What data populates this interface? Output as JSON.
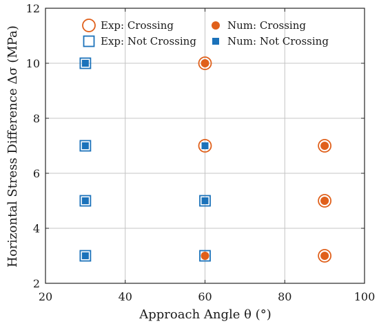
{
  "chart_data": {
    "type": "scatter",
    "title": "",
    "xlabel": "Approach Angle θ (°)",
    "ylabel": "Horizontal Stress Difference Δσ (MPa)",
    "xlim": [
      20,
      100
    ],
    "ylim": [
      2,
      12
    ],
    "x_ticks": [
      20,
      40,
      60,
      80,
      100
    ],
    "y_ticks": [
      2,
      4,
      6,
      8,
      10,
      12
    ],
    "grid": true,
    "legend_position": "top",
    "series": [
      {
        "name": "Exp: Crossing",
        "marker": "open-circle",
        "color": "#E0601B",
        "points": [
          [
            60,
            10
          ],
          [
            60,
            7
          ],
          [
            90,
            7
          ],
          [
            90,
            5
          ],
          [
            90,
            3
          ]
        ]
      },
      {
        "name": "Exp: Not Crossing",
        "marker": "open-square",
        "color": "#1B72BA",
        "points": [
          [
            30,
            10
          ],
          [
            30,
            7
          ],
          [
            30,
            5
          ],
          [
            30,
            3
          ],
          [
            60,
            5
          ],
          [
            60,
            3
          ]
        ]
      },
      {
        "name": "Num: Crossing",
        "marker": "filled-circle",
        "color": "#E0601B",
        "points": [
          [
            60,
            10
          ],
          [
            60,
            3
          ],
          [
            90,
            7
          ],
          [
            90,
            5
          ],
          [
            90,
            3
          ]
        ]
      },
      {
        "name": "Num: Not Crossing",
        "marker": "filled-square",
        "color": "#1B72BA",
        "points": [
          [
            30,
            10
          ],
          [
            30,
            7
          ],
          [
            30,
            5
          ],
          [
            30,
            3
          ],
          [
            60,
            7
          ],
          [
            60,
            5
          ]
        ]
      }
    ]
  }
}
